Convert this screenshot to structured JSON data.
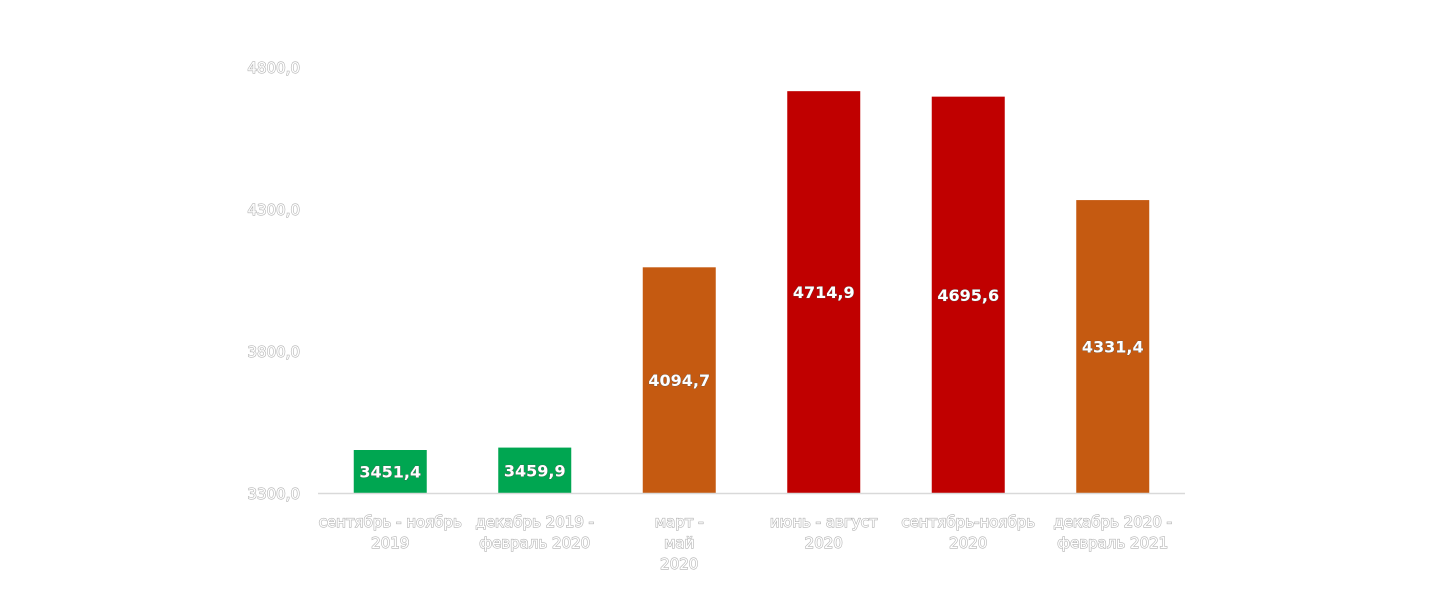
{
  "chart_data": {
    "type": "bar",
    "title": "",
    "xlabel": "",
    "ylabel": "",
    "ylim": [
      3300,
      4800
    ],
    "yticks": [
      "3300,0",
      "3800,0",
      "4300,0",
      "4800,0"
    ],
    "ytick_values": [
      3300,
      3800,
      4300,
      4800
    ],
    "grid": false,
    "legend": "none",
    "categories": [
      [
        "сентябрь - ноябрь",
        "2019"
      ],
      [
        "декабрь 2019 -",
        "февраль 2020"
      ],
      [
        "март  -",
        "май",
        "2020"
      ],
      [
        "июнь  - август",
        "2020"
      ],
      [
        "сентябрь-ноябрь",
        "2020"
      ],
      [
        "декабрь 2020 -",
        "февраль 2021"
      ]
    ],
    "values": [
      3451.4,
      3459.9,
      4094.7,
      4714.9,
      4695.6,
      4331.4
    ],
    "value_labels": [
      "3451,4",
      "3459,9",
      "4094,7",
      "4714,9",
      "4695,6",
      "4331,4"
    ],
    "colors": [
      "#00a651",
      "#00a651",
      "#c55a11",
      "#c00000",
      "#c00000",
      "#c55a11"
    ],
    "axis_color": "#d9d9d9"
  }
}
